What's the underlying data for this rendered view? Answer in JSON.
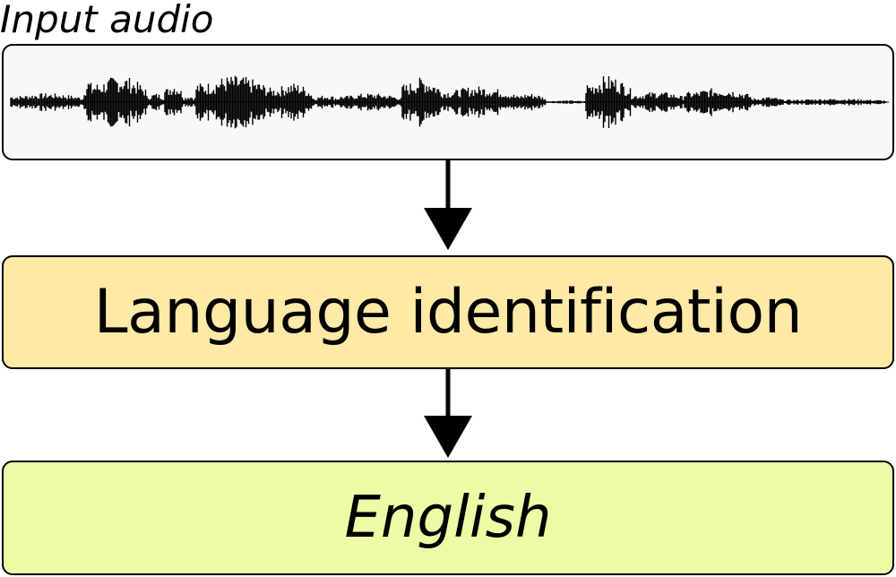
{
  "input": {
    "label": "Input audio",
    "icon": "waveform-icon"
  },
  "process": {
    "label": "Language identification"
  },
  "output": {
    "label": "English"
  },
  "colors": {
    "audio_box_fill": "#f8f8f8",
    "process_box_fill": "#feeaa6",
    "output_box_fill": "#eefaa6",
    "stroke": "#000000"
  }
}
